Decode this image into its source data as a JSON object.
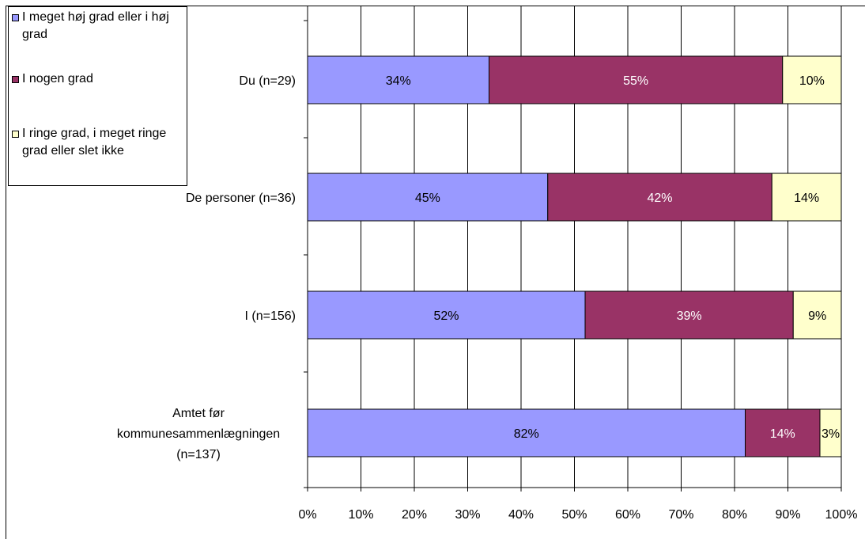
{
  "chart_data": {
    "type": "bar",
    "orientation": "horizontal",
    "stacked": true,
    "categories": [
      [
        "Du (n=29)"
      ],
      [
        "De personer (n=36)"
      ],
      [
        "I (n=156)"
      ],
      [
        "Amtet før",
        "kommunesammenlægningen",
        "(n=137)"
      ]
    ],
    "series": [
      {
        "name": "I meget høj grad eller i høj grad",
        "color": "#9999ff",
        "values": [
          34,
          45,
          52,
          82
        ],
        "labels": [
          "34%",
          "45%",
          "52%",
          "82%"
        ]
      },
      {
        "name": "I nogen grad",
        "color": "#993366",
        "values": [
          55,
          42,
          39,
          14
        ],
        "labels": [
          "55%",
          "42%",
          "39%",
          "14%"
        ]
      },
      {
        "name": "I ringe grad, i meget ringe grad eller slet ikke",
        "color": "#ffffcc",
        "values": [
          10,
          14,
          9,
          3
        ],
        "labels": [
          "10%",
          "14%",
          "9%",
          "3%"
        ]
      }
    ],
    "xlim": [
      0,
      100
    ],
    "x_ticks": [
      "0%",
      "10%",
      "20%",
      "30%",
      "40%",
      "50%",
      "60%",
      "70%",
      "80%",
      "90%",
      "100%"
    ],
    "grid": true,
    "legend_position": "top-left",
    "title": "",
    "xlabel": "",
    "ylabel": ""
  }
}
